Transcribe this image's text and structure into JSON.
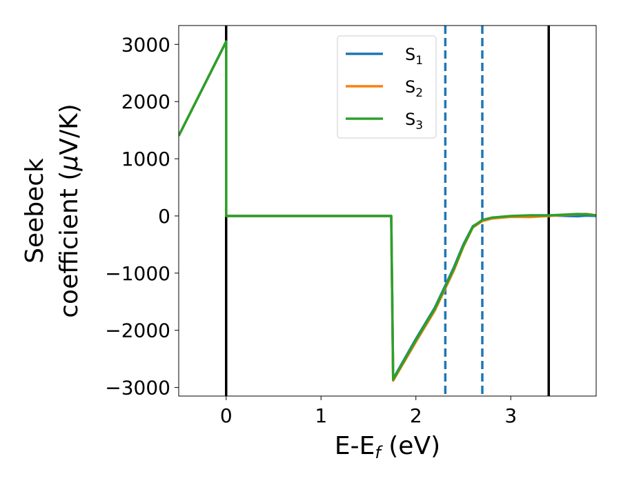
{
  "chart_data": {
    "type": "line",
    "xlabel": {
      "main": "E-E",
      "sub": "f",
      "unit": " (eV)"
    },
    "ylabel": {
      "line1": "Seebeck",
      "line2": "coefficient  (",
      "mu": "μ",
      "unit": "V/K)"
    },
    "xlim": [
      -0.5,
      3.9
    ],
    "ylim": [
      -3150,
      3330
    ],
    "xticks": [
      0,
      1,
      2,
      3
    ],
    "xtick_labels": [
      "0",
      "1",
      "2",
      "3"
    ],
    "yticks": [
      3000,
      2000,
      1000,
      0,
      -1000,
      -2000,
      -3000
    ],
    "ytick_labels": [
      "3000",
      "2000",
      "1000",
      "0",
      "−1000",
      "−2000",
      "−3000"
    ],
    "grid": false,
    "legend": {
      "placement": "top-center"
    },
    "series": [
      {
        "name": "S",
        "subscript": "1",
        "color": "#1f77b4",
        "x": [
          -0.5,
          0.0,
          0.0,
          1.74,
          1.74,
          1.76,
          2.0,
          2.2,
          2.4,
          2.5,
          2.6,
          2.7,
          2.8,
          3.0,
          3.2,
          3.4,
          3.6,
          3.7,
          3.8,
          3.9
        ],
        "y": [
          1400,
          3050,
          0,
          0,
          -10,
          -2850,
          -2150,
          -1600,
          -900,
          -500,
          -180,
          -80,
          -40,
          -10,
          10,
          10,
          0,
          -5,
          5,
          0
        ]
      },
      {
        "name": "S",
        "subscript": "2",
        "color": "#ff7f0e",
        "x": [
          -0.5,
          0.0,
          0.0,
          1.74,
          1.74,
          1.76,
          2.0,
          2.2,
          2.4,
          2.5,
          2.6,
          2.7,
          2.8,
          3.0,
          3.2,
          3.4,
          3.6,
          3.7,
          3.8,
          3.9
        ],
        "y": [
          1400,
          3050,
          0,
          0,
          -10,
          -2880,
          -2200,
          -1650,
          -950,
          -540,
          -200,
          -90,
          -45,
          -15,
          -20,
          0,
          20,
          30,
          35,
          10
        ]
      },
      {
        "name": "S",
        "subscript": "3",
        "color": "#2ca02c",
        "x": [
          -0.5,
          0.0,
          0.0,
          1.74,
          1.74,
          1.76,
          2.0,
          2.2,
          2.4,
          2.5,
          2.6,
          2.7,
          2.8,
          3.0,
          3.2,
          3.4,
          3.6,
          3.7,
          3.8,
          3.9
        ],
        "y": [
          1400,
          3050,
          0,
          0,
          -10,
          -2860,
          -2170,
          -1620,
          -920,
          -520,
          -190,
          -70,
          -30,
          0,
          10,
          10,
          25,
          35,
          30,
          10
        ]
      }
    ],
    "vlines": [
      {
        "x": 0.0,
        "style": "solid",
        "color": "#000000"
      },
      {
        "x": 3.4,
        "style": "solid",
        "color": "#000000"
      },
      {
        "x": 2.31,
        "style": "dashed",
        "color": "#1f77b4"
      },
      {
        "x": 2.7,
        "style": "dashed",
        "color": "#1f77b4"
      }
    ]
  }
}
